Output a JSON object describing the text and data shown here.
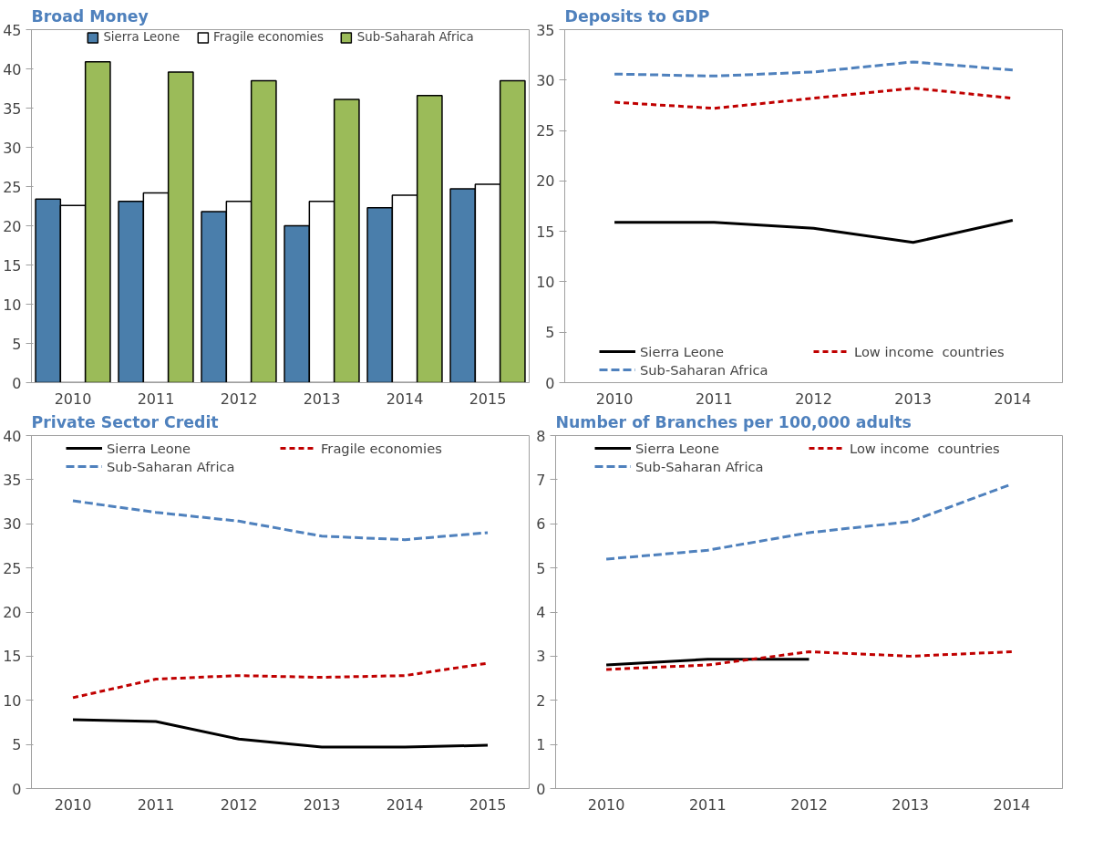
{
  "chart_data": [
    {
      "type": "bar",
      "title": "Broad Money",
      "categories": [
        "2010",
        "2011",
        "2012",
        "2013",
        "2014",
        "2015"
      ],
      "ylim": [
        0,
        45
      ],
      "yticks": [
        0,
        5,
        10,
        15,
        20,
        25,
        30,
        35,
        40,
        45
      ],
      "grid": false,
      "legend": "top",
      "series": [
        {
          "name": "Sierra Leone",
          "color": "#4a7eab",
          "values": [
            23.4,
            23.1,
            21.8,
            20.0,
            22.3,
            24.7
          ]
        },
        {
          "name": "Fragile economies",
          "color": "#ffffff",
          "values": [
            22.6,
            24.2,
            23.1,
            23.1,
            23.9,
            25.3
          ]
        },
        {
          "name": "Sub-Saharah Africa",
          "color": "#9bbb59",
          "values": [
            40.9,
            39.6,
            38.5,
            36.1,
            36.6,
            38.5
          ]
        }
      ]
    },
    {
      "type": "line",
      "title": "Deposits to GDP",
      "categories": [
        "2010",
        "2011",
        "2012",
        "2013",
        "2014"
      ],
      "ylim": [
        0,
        35
      ],
      "yticks": [
        0,
        5,
        10,
        15,
        20,
        25,
        30,
        35
      ],
      "grid": false,
      "legend": "bottom",
      "series": [
        {
          "name": "Sierra Leone",
          "color": "#000000",
          "line_style": "solid",
          "values": [
            15.9,
            15.9,
            15.3,
            13.9,
            16.1
          ]
        },
        {
          "name": "Low income  countries",
          "color": "#c00000",
          "line_style": "dotted",
          "values": [
            27.8,
            27.2,
            28.2,
            29.2,
            28.2
          ]
        },
        {
          "name": "Sub-Saharan Africa",
          "color": "#4f81bd",
          "line_style": "dashed",
          "values": [
            30.6,
            30.4,
            30.8,
            31.8,
            31.0
          ]
        }
      ]
    },
    {
      "type": "line",
      "title": "Private Sector Credit",
      "categories": [
        "2010",
        "2011",
        "2012",
        "2013",
        "2014",
        "2015"
      ],
      "ylim": [
        0,
        40
      ],
      "yticks": [
        0,
        5,
        10,
        15,
        20,
        25,
        30,
        35,
        40
      ],
      "grid": false,
      "legend": "top",
      "series": [
        {
          "name": "Sierra Leone",
          "color": "#000000",
          "line_style": "solid",
          "values": [
            7.8,
            7.6,
            5.6,
            4.7,
            4.7,
            4.9
          ]
        },
        {
          "name": "Fragile economies",
          "color": "#c00000",
          "line_style": "dotted",
          "values": [
            10.3,
            12.4,
            12.8,
            12.6,
            12.8,
            14.2
          ]
        },
        {
          "name": "Sub-Saharan Africa",
          "color": "#4f81bd",
          "line_style": "dashed",
          "values": [
            32.6,
            31.3,
            30.3,
            28.6,
            28.2,
            29.0
          ]
        }
      ]
    },
    {
      "type": "line",
      "title": "Number of Branches per 100,000 adults",
      "categories": [
        "2010",
        "2011",
        "2012",
        "2013",
        "2014"
      ],
      "ylim": [
        0,
        8
      ],
      "yticks": [
        0,
        1,
        2,
        3,
        4,
        5,
        6,
        7,
        8
      ],
      "grid": false,
      "legend": "top",
      "series": [
        {
          "name": "Sierra Leone",
          "color": "#000000",
          "line_style": "solid",
          "values": [
            2.8,
            2.93,
            2.93,
            null,
            null
          ]
        },
        {
          "name": "Low income  countries",
          "color": "#c00000",
          "line_style": "dotted",
          "values": [
            2.7,
            2.8,
            3.1,
            3.0,
            3.1
          ]
        },
        {
          "name": "Sub-Saharan Africa",
          "color": "#4f81bd",
          "line_style": "dashed",
          "values": [
            5.2,
            5.4,
            5.8,
            6.05,
            6.9
          ]
        }
      ]
    }
  ]
}
